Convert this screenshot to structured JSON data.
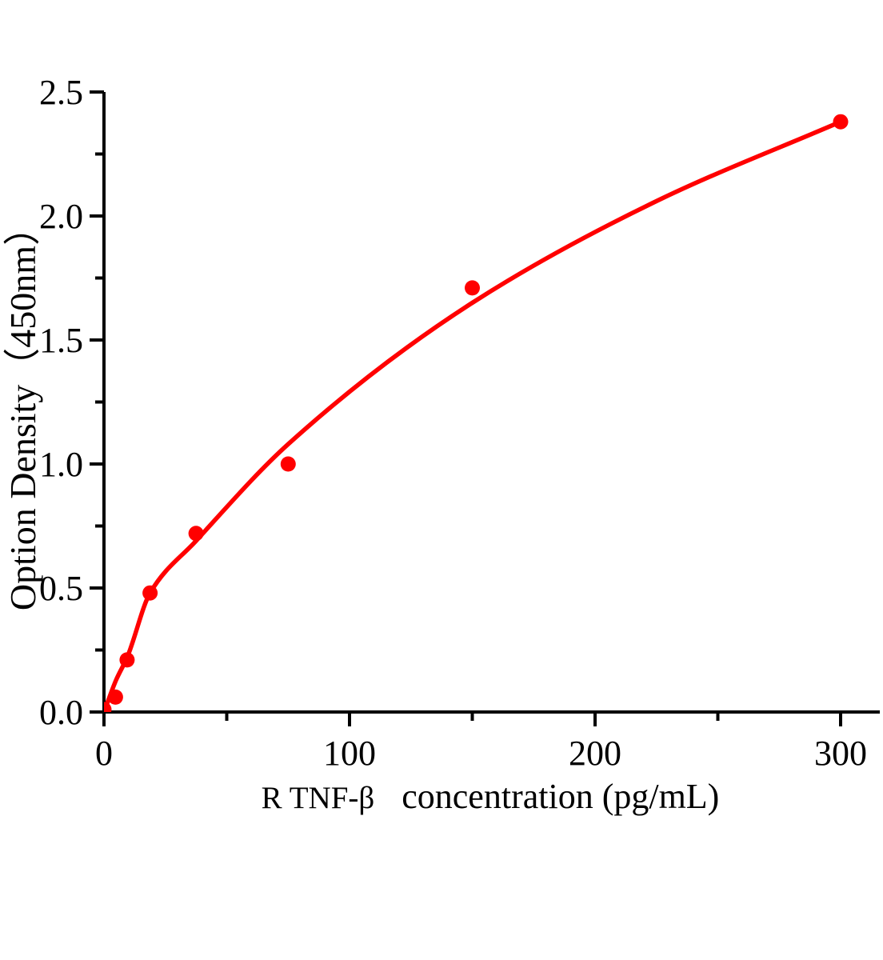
{
  "chart_data": {
    "type": "scatter",
    "title": "",
    "xlabel": "R TNF-β  concentration (pg/mL)",
    "xlabel_parts": [
      "R TNF-β",
      "concentration (pg/mL)"
    ],
    "ylabel": "Option Density（450nm）",
    "xlim": [
      0,
      316
    ],
    "ylim": [
      0,
      2.5
    ],
    "grid": false,
    "legend": null,
    "background_color": "#ffffff",
    "axis_color": "#000000",
    "series_color": "#ff0000",
    "x_major_ticks": [
      {
        "v": 0,
        "label": "0"
      },
      {
        "v": 100,
        "label": "100"
      },
      {
        "v": 200,
        "label": "200"
      },
      {
        "v": 300,
        "label": "300"
      }
    ],
    "x_minor_ticks": [
      50,
      150,
      250
    ],
    "y_major_ticks": [
      {
        "v": 0.0,
        "label": "0.0"
      },
      {
        "v": 0.5,
        "label": "0.5"
      },
      {
        "v": 1.0,
        "label": "1.0"
      },
      {
        "v": 1.5,
        "label": "1.5"
      },
      {
        "v": 2.0,
        "label": "2.0"
      },
      {
        "v": 2.5,
        "label": "2.5"
      }
    ],
    "y_minor_ticks": [
      0.25,
      0.75,
      1.25,
      1.75,
      2.25
    ],
    "series": [
      {
        "name": "standard-points",
        "type": "scatter",
        "marker": "circle",
        "color": "#ff0000",
        "points": [
          {
            "x": 0,
            "y": 0.01
          },
          {
            "x": 4.7,
            "y": 0.06
          },
          {
            "x": 9.4,
            "y": 0.21
          },
          {
            "x": 18.75,
            "y": 0.48
          },
          {
            "x": 37.5,
            "y": 0.72
          },
          {
            "x": 75,
            "y": 1.0
          },
          {
            "x": 150,
            "y": 1.71
          },
          {
            "x": 300,
            "y": 2.38
          }
        ]
      },
      {
        "name": "fitted-curve",
        "type": "line",
        "color": "#ff0000",
        "points": [
          {
            "x": 0,
            "y": 0.0
          },
          {
            "x": 5,
            "y": 0.13
          },
          {
            "x": 9.4,
            "y": 0.22
          },
          {
            "x": 18.75,
            "y": 0.48
          },
          {
            "x": 37.5,
            "y": 0.69
          },
          {
            "x": 75,
            "y": 1.08
          },
          {
            "x": 150,
            "y": 1.65
          },
          {
            "x": 225,
            "y": 2.06
          },
          {
            "x": 300,
            "y": 2.38
          }
        ]
      }
    ]
  }
}
